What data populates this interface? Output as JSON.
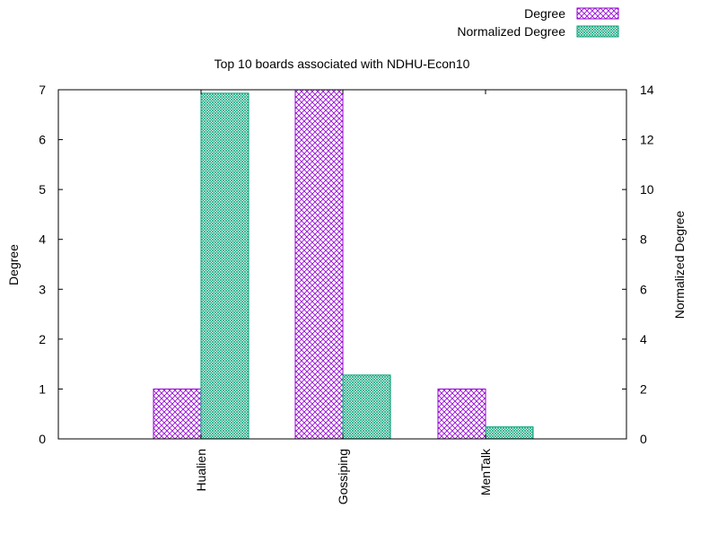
{
  "chart_data": {
    "type": "bar",
    "title": "Top 10 boards associated with NDHU-Econ10",
    "categories": [
      "Hualien",
      "Gossiping",
      "MenTalk"
    ],
    "series": [
      {
        "name": "Degree",
        "axis": "left",
        "values": [
          1,
          7,
          1
        ],
        "color": "#9400d3",
        "pattern": "crosshatch"
      },
      {
        "name": "Normalized Degree",
        "axis": "right",
        "values": [
          13.86,
          2.56,
          0.48
        ],
        "color": "#009e73",
        "pattern": "fine-crosshatch"
      }
    ],
    "ylabel": "Degree",
    "y2label": "Normalized Degree",
    "ylim": [
      0,
      7
    ],
    "y2lim": [
      0,
      14
    ],
    "yticks": [
      "0",
      "1",
      "2",
      "3",
      "4",
      "5",
      "6",
      "7"
    ],
    "y2ticks": [
      "0",
      "2",
      "4",
      "6",
      "8",
      "10",
      "12",
      "14"
    ],
    "grid": false,
    "legend_position": "top-right"
  }
}
